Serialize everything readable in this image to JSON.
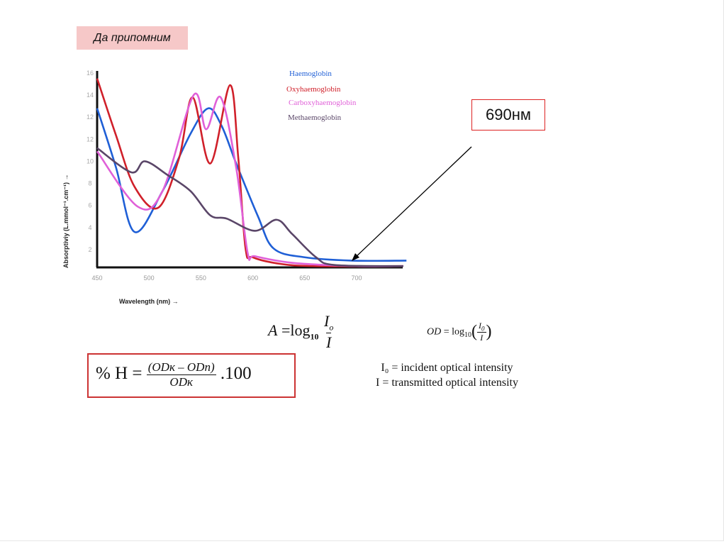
{
  "slide": {
    "title": "Да припомним",
    "callout": "690нм",
    "formula_a": {
      "lhs": "A",
      "eq": "=",
      "log": "log",
      "base": "10",
      "num": "I",
      "num_sub": "o",
      "den": "I"
    },
    "formula_od": {
      "lhs": "OD",
      "eq": "=",
      "log": "log",
      "base": "10",
      "num": "I",
      "num_sub": "0",
      "den": "I"
    },
    "formula_h": {
      "lhs": "% H =",
      "num": "(ODк – ODп)",
      "den": "ODк",
      "tail": ".100"
    },
    "definitions": [
      "I₀ = incident optical intensity",
      "I = transmitted optical intensity"
    ]
  },
  "chart_data": {
    "type": "line",
    "title": "",
    "xlabel": "Wavelength (nm) →",
    "ylabel": "Absorptiviy (L.mmol⁻¹.cm⁻¹) →",
    "xlim": [
      450,
      750
    ],
    "ylim": [
      0,
      18
    ],
    "xticks": [
      450,
      500,
      550,
      600,
      650,
      700
    ],
    "xtick_labels": [
      "450",
      "500",
      "550",
      "600",
      "650",
      "700"
    ],
    "ytick_labels": [
      "2",
      "4",
      "6",
      "8",
      "10",
      "12",
      "12",
      "14",
      "16"
    ],
    "grid": false,
    "legend_position": "top-right",
    "series": [
      {
        "name": "Haemoglobin",
        "color": "#1f5fd6",
        "x": [
          450,
          468,
          486,
          513,
          540,
          557,
          570,
          584,
          605,
          620,
          650,
          695,
          748
        ],
        "y": [
          14.8,
          9.5,
          3.6,
          7.3,
          12.5,
          14.8,
          13.2,
          9.8,
          5.0,
          2.1,
          1.3,
          1.0,
          1.0
        ]
      },
      {
        "name": "Oxyhaemoglobin",
        "color": "#d0202a",
        "x": [
          450,
          468,
          486,
          509,
          529,
          542,
          559,
          578,
          586,
          593,
          600,
          627,
          661,
          745
        ],
        "y": [
          17.5,
          12.4,
          7.7,
          5.8,
          10.3,
          15.8,
          9.8,
          16.9,
          10.3,
          2.1,
          1.3,
          0.7,
          0.5,
          0.5
        ]
      },
      {
        "name": "Carboxyhaemoglobin",
        "color": "#e060d8",
        "x": [
          450,
          489,
          513,
          543,
          555,
          569,
          584,
          595,
          602,
          638,
          700,
          745
        ],
        "y": [
          10.9,
          5.9,
          7.3,
          16.0,
          12.9,
          15.8,
          9.4,
          1.7,
          1.4,
          0.8,
          0.5,
          0.5
        ]
      },
      {
        "name": "Methaemoglobin",
        "color": "#5a4668",
        "x": [
          450,
          483,
          496,
          518,
          540,
          559,
          575,
          602,
          623,
          638,
          661,
          679,
          745
        ],
        "y": [
          11.2,
          9.0,
          10.0,
          8.75,
          7.3,
          5.1,
          4.8,
          3.7,
          4.7,
          3.4,
          1.3,
          0.6,
          0.5
        ]
      }
    ]
  }
}
